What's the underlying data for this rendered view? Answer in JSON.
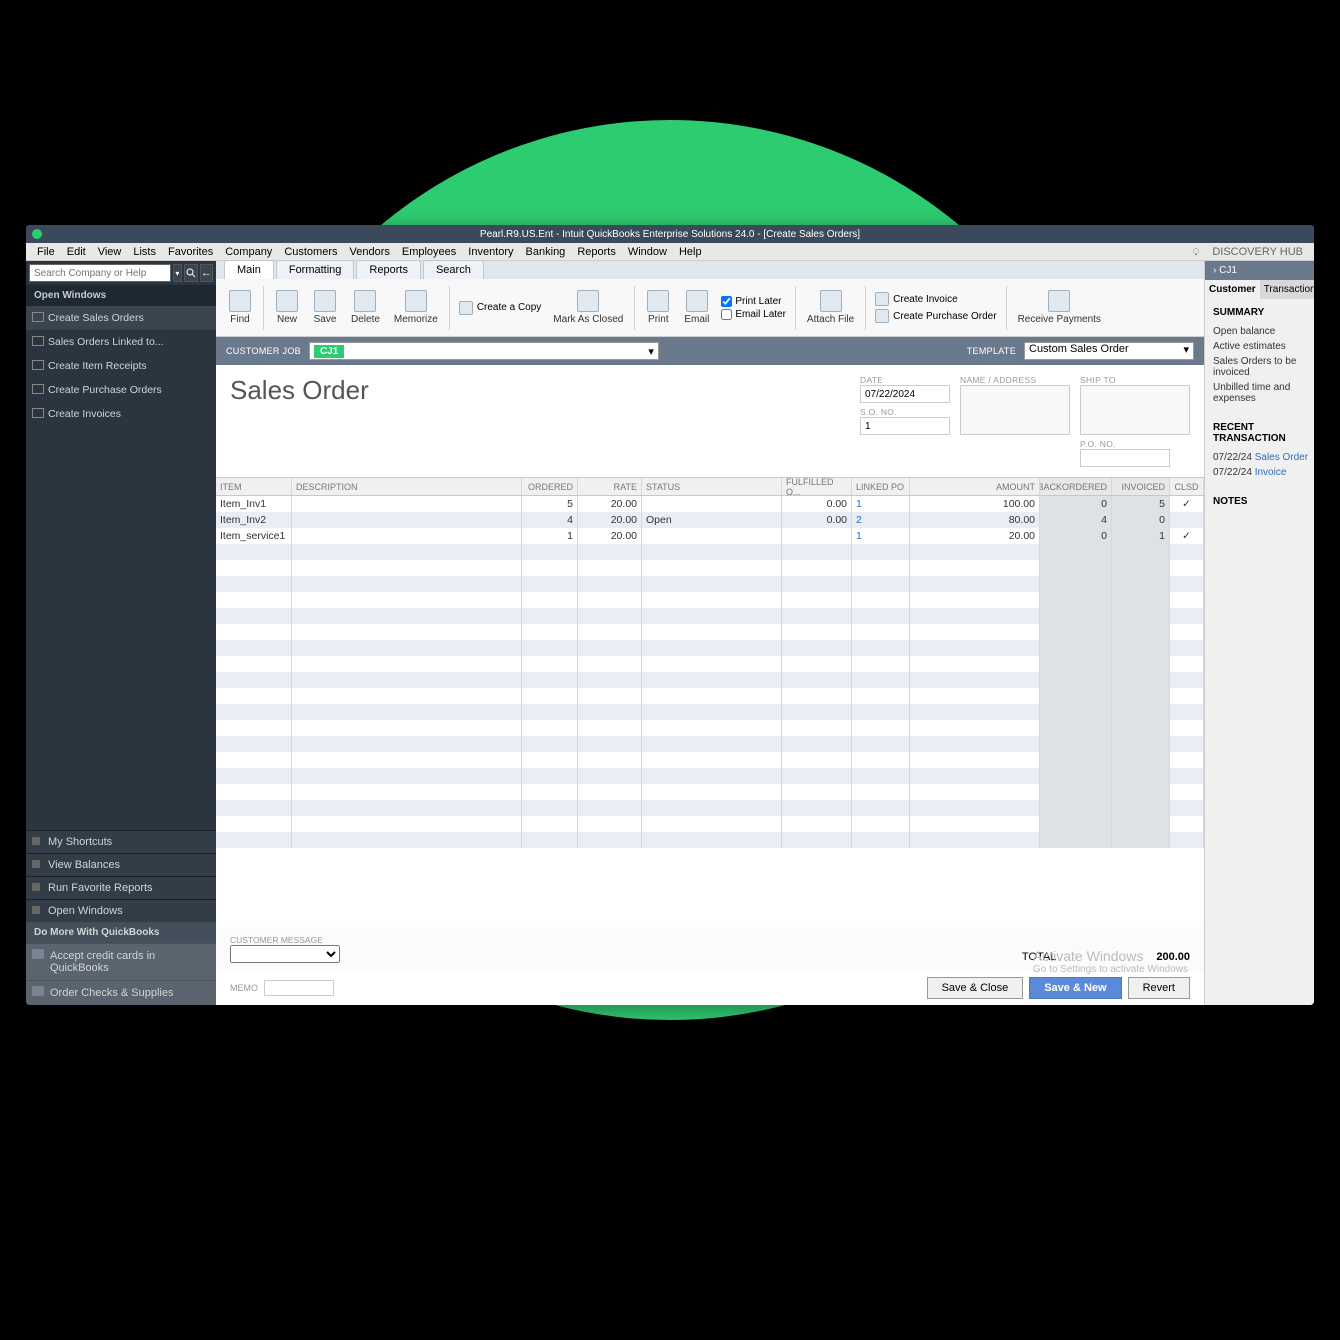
{
  "circle_color": "#2ecc71",
  "title": "Pearl.R9.US.Ent  - Intuit QuickBooks Enterprise Solutions 24.0 - [Create Sales Orders]",
  "menus": [
    "File",
    "Edit",
    "View",
    "Lists",
    "Favorites",
    "Company",
    "Customers",
    "Vendors",
    "Employees",
    "Inventory",
    "Banking",
    "Reports",
    "Window",
    "Help"
  ],
  "discovery_hub": "DISCOVERY HUB",
  "search_placeholder": "Search Company or Help",
  "sidebar": {
    "open_windows": "Open Windows",
    "items": [
      "Create Sales Orders",
      "Sales Orders Linked to...",
      "Create Item Receipts",
      "Create Purchase Orders",
      "Create Invoices"
    ],
    "shortcuts": [
      "My Shortcuts",
      "View Balances",
      "Run Favorite Reports",
      "Open Windows"
    ],
    "do_more": "Do More With QuickBooks",
    "do_more_items": [
      "Accept credit cards in QuickBooks",
      "Order Checks & Supplies"
    ]
  },
  "tabs": [
    "Main",
    "Formatting",
    "Reports",
    "Search"
  ],
  "ribbon": {
    "find": "Find",
    "new": "New",
    "save": "Save",
    "delete": "Delete",
    "memorize": "Memorize",
    "create_copy": "Create a Copy",
    "mark_closed": "Mark As Closed",
    "print": "Print",
    "email": "Email",
    "print_later": "Print Later",
    "email_later": "Email Later",
    "attach": "Attach File",
    "create_invoice": "Create Invoice",
    "create_po": "Create Purchase Order",
    "receive": "Receive Payments"
  },
  "custbar": {
    "customer_lbl": "CUSTOMER JOB",
    "customer": "CJ1",
    "template_lbl": "TEMPLATE",
    "template": "Custom Sales Order"
  },
  "form": {
    "title": "Sales Order",
    "date_lbl": "DATE",
    "date": "07/22/2024",
    "sono_lbl": "S.O. NO.",
    "sono": "1",
    "name_lbl": "NAME / ADDRESS",
    "shipto_lbl": "SHIP TO",
    "po_lbl": "P.O. NO."
  },
  "grid": {
    "headers": [
      "ITEM",
      "DESCRIPTION",
      "ORDERED",
      "RATE",
      "STATUS",
      "FULFILLED Q...",
      "LINKED PO",
      "AMOUNT",
      "BACKORDERED",
      "INVOICED",
      "CLSD"
    ],
    "rows": [
      {
        "item": "Item_Inv1",
        "desc": "",
        "ordered": "5",
        "rate": "20.00",
        "status": "",
        "fulfilled": "0.00",
        "linkedpo": "1",
        "amount": "100.00",
        "backordered": "0",
        "invoiced": "5",
        "clsd": "✓"
      },
      {
        "item": "Item_Inv2",
        "desc": "",
        "ordered": "4",
        "rate": "20.00",
        "status": "Open",
        "fulfilled": "0.00",
        "linkedpo": "2",
        "amount": "80.00",
        "backordered": "4",
        "invoiced": "0",
        "clsd": ""
      },
      {
        "item": "Item_service1",
        "desc": "",
        "ordered": "1",
        "rate": "20.00",
        "status": "",
        "fulfilled": "",
        "linkedpo": "1",
        "amount": "20.00",
        "backordered": "0",
        "invoiced": "1",
        "clsd": "✓"
      }
    ],
    "blank_rows": 19
  },
  "footer": {
    "cust_msg_lbl": "CUSTOMER MESSAGE",
    "memo_lbl": "MEMO",
    "total_lbl": "TOTAL",
    "total": "200.00",
    "save_close": "Save & Close",
    "save_new": "Save & New",
    "revert": "Revert"
  },
  "rpanel": {
    "name": "CJ1",
    "tabs": [
      "Customer",
      "Transaction"
    ],
    "summary_lbl": "SUMMARY",
    "summary": [
      "Open balance",
      "Active estimates",
      "Sales Orders to be invoiced",
      "Unbilled time and expenses"
    ],
    "recent_lbl": "RECENT TRANSACTION",
    "recent": [
      {
        "date": "07/22/24",
        "link": "Sales Order"
      },
      {
        "date": "07/22/24",
        "link": "Invoice"
      }
    ],
    "notes_lbl": "NOTES"
  },
  "watermark": {
    "line1": "Activate Windows",
    "line2": "Go to Settings to activate Windows"
  }
}
